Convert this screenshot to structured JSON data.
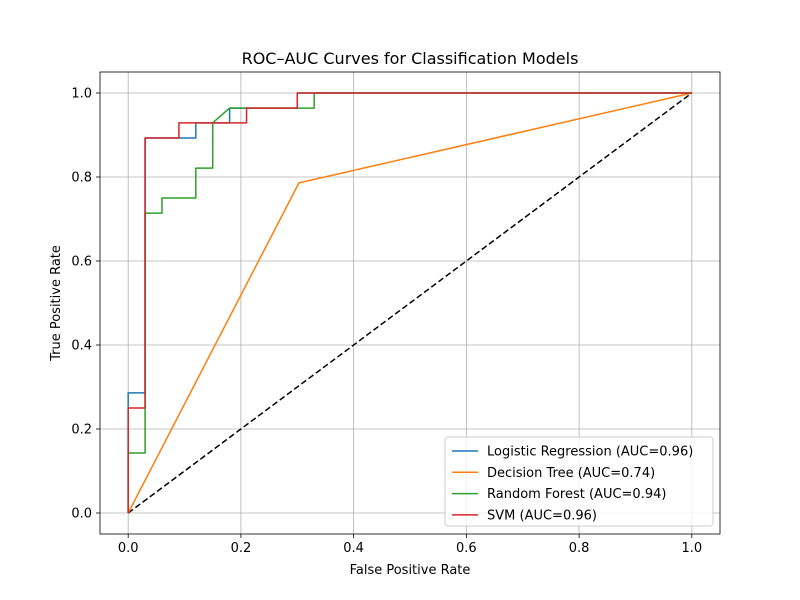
{
  "chart_data": {
    "type": "line",
    "title": "ROC–AUC Curves for Classification Models",
    "xlabel": "False Positive Rate",
    "ylabel": "True Positive Rate",
    "xlim": [
      -0.05,
      1.05
    ],
    "ylim": [
      -0.05,
      1.05
    ],
    "xticks": [
      0.0,
      0.2,
      0.4,
      0.6,
      0.8,
      1.0
    ],
    "yticks": [
      0.0,
      0.2,
      0.4,
      0.6,
      0.8,
      1.0
    ],
    "xtick_labels": [
      "0.0",
      "0.2",
      "0.4",
      "0.6",
      "0.8",
      "1.0"
    ],
    "ytick_labels": [
      "0.0",
      "0.2",
      "0.4",
      "0.6",
      "0.8",
      "1.0"
    ],
    "grid": true,
    "legend_position": "bottom-right",
    "series": [
      {
        "name": "Logistic Regression (AUC=0.96)",
        "color": "#1f77b4",
        "x": [
          0,
          0,
          0,
          0.03,
          0.03,
          0.12,
          0.12,
          0.18,
          0.18,
          0.3,
          0.3,
          1.0
        ],
        "y": [
          0,
          0.036,
          0.286,
          0.286,
          0.893,
          0.893,
          0.929,
          0.929,
          0.964,
          0.964,
          1.0,
          1.0
        ]
      },
      {
        "name": "Decision Tree (AUC=0.74)",
        "color": "#ff7f0e",
        "x": [
          0,
          0.303,
          1.0
        ],
        "y": [
          0,
          0.786,
          1.0
        ]
      },
      {
        "name": "Random Forest (AUC=0.94)",
        "color": "#2ca02c",
        "x": [
          0,
          0,
          0.03,
          0.03,
          0.06,
          0.06,
          0.12,
          0.12,
          0.15,
          0.15,
          0.18,
          0.18,
          0.33,
          0.33,
          1.0
        ],
        "y": [
          0,
          0.143,
          0.143,
          0.714,
          0.714,
          0.75,
          0.75,
          0.821,
          0.821,
          0.929,
          0.964,
          0.964,
          0.964,
          1.0,
          1.0
        ]
      },
      {
        "name": "SVM (AUC=0.96)",
        "color": "#d62728",
        "x": [
          0,
          0,
          0.03,
          0.03,
          0.09,
          0.09,
          0.21,
          0.21,
          0.3,
          0.3,
          1.0
        ],
        "y": [
          0,
          0.25,
          0.25,
          0.893,
          0.893,
          0.929,
          0.929,
          0.964,
          0.964,
          1.0,
          1.0
        ]
      }
    ],
    "reference_line": {
      "color": "#000000",
      "style": "dashed",
      "x": [
        0,
        1
      ],
      "y": [
        0,
        1
      ]
    }
  }
}
